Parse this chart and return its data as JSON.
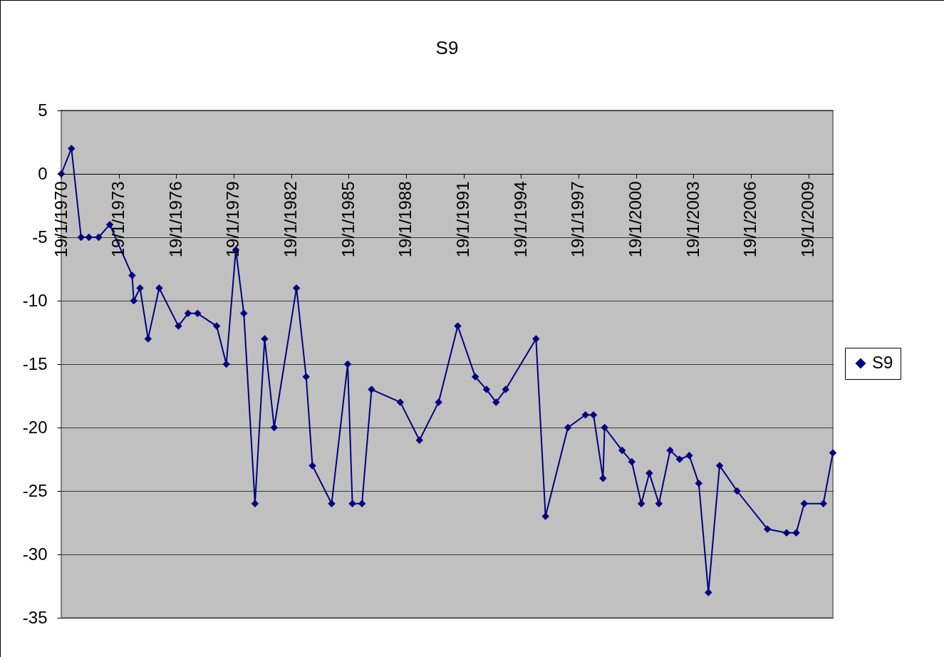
{
  "chart_data": {
    "type": "line",
    "title": "S9",
    "legend": "right",
    "grid": "y",
    "marker": "diamond",
    "line_style": "solid",
    "xlim": [
      "1970-01-19",
      "2010-05-01"
    ],
    "xticks": [
      {
        "value": "1970-01-19",
        "label": "19/1/1970"
      },
      {
        "value": "1973-01-19",
        "label": "19/1/1973"
      },
      {
        "value": "1976-01-19",
        "label": "19/1/1976"
      },
      {
        "value": "1979-01-19",
        "label": "19/1/1979"
      },
      {
        "value": "1982-01-19",
        "label": "19/1/1982"
      },
      {
        "value": "1985-01-19",
        "label": "19/1/1985"
      },
      {
        "value": "1988-01-19",
        "label": "19/1/1988"
      },
      {
        "value": "1991-01-19",
        "label": "19/1/1991"
      },
      {
        "value": "1994-01-19",
        "label": "19/1/1994"
      },
      {
        "value": "1997-01-19",
        "label": "19/1/1997"
      },
      {
        "value": "2000-01-19",
        "label": "19/1/2000"
      },
      {
        "value": "2003-01-19",
        "label": "19/1/2003"
      },
      {
        "value": "2006-01-19",
        "label": "19/1/2006"
      },
      {
        "value": "2009-01-19",
        "label": "19/1/2009"
      }
    ],
    "ylim": [
      -35,
      5
    ],
    "yticks": [
      5,
      0,
      -5,
      -10,
      -15,
      -20,
      -25,
      -30,
      -35
    ],
    "x": [
      "1970-01-19",
      "1970-08",
      "1971-02",
      "1971-07",
      "1972-01",
      "1972-08",
      "1973-10",
      "1973-11",
      "1974-03",
      "1974-08",
      "1975-03",
      "1976-03",
      "1976-09",
      "1977-03",
      "1978-03",
      "1978-09",
      "1979-03",
      "1979-08",
      "1980-03",
      "1980-09",
      "1981-03",
      "1982-05",
      "1982-11",
      "1983-03",
      "1984-03",
      "1985-01",
      "1985-04",
      "1985-10",
      "1986-04",
      "1987-10",
      "1988-10",
      "1989-10",
      "1990-10",
      "1991-09",
      "1992-04",
      "1992-10",
      "1993-04",
      "1994-11",
      "1995-05",
      "1996-07",
      "1997-06",
      "1997-11",
      "1998-05",
      "1998-06",
      "1999-05",
      "1999-11",
      "2000-05",
      "2000-10",
      "2001-04",
      "2001-11",
      "2002-05",
      "2002-11",
      "2003-05",
      "2003-11",
      "2004-06",
      "2005-05",
      "2006-12",
      "2007-12",
      "2008-06",
      "2008-11",
      "2009-11",
      "2010-05"
    ],
    "series": [
      {
        "name": "S9",
        "color": "#000080",
        "values": [
          0,
          2,
          -5,
          -5,
          -5,
          -4,
          -8,
          -10,
          -9,
          -13,
          -9,
          -12,
          -11,
          -11,
          -12,
          -15,
          -6,
          -11,
          -26,
          -13,
          -20,
          -9,
          -16,
          -23,
          -26,
          -15,
          -26,
          -26,
          -17,
          -18,
          -21,
          -18,
          -12,
          -16,
          -17,
          -18,
          -17,
          -13,
          -27,
          -20,
          -19,
          -19,
          -24,
          -20,
          -21.8,
          -22.7,
          -26,
          -23.6,
          -26,
          -21.8,
          -22.5,
          -22.2,
          -24.4,
          -33,
          -23,
          -25,
          -28,
          -28.3,
          -28.3,
          -26,
          -26,
          -22
        ]
      }
    ]
  }
}
